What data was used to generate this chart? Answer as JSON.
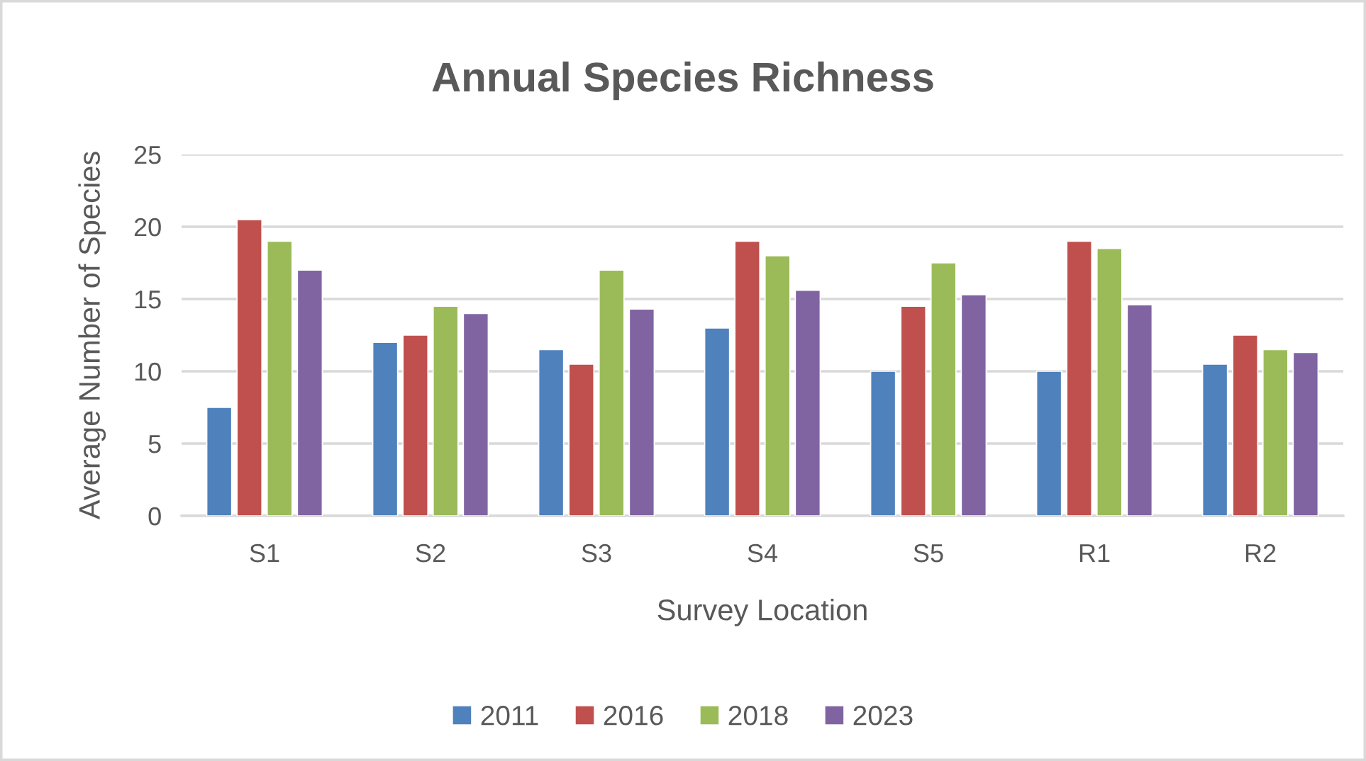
{
  "chart_data": {
    "type": "bar",
    "title": "Annual Species Richness",
    "xlabel": "Survey Location",
    "ylabel": "Average Number of Species",
    "categories": [
      "S1",
      "S2",
      "S3",
      "S4",
      "S5",
      "R1",
      "R2"
    ],
    "series": [
      {
        "name": "2011",
        "color": "#4f81bd",
        "values": [
          7.5,
          12,
          11.5,
          13,
          10,
          10,
          10.5
        ]
      },
      {
        "name": "2016",
        "color": "#c0504d",
        "values": [
          20.5,
          12.5,
          10.5,
          19,
          14.5,
          19,
          12.5
        ]
      },
      {
        "name": "2018",
        "color": "#9bbb59",
        "values": [
          19,
          14.5,
          17,
          18,
          17.5,
          18.5,
          11.5
        ]
      },
      {
        "name": "2023",
        "color": "#8064a2",
        "values": [
          17,
          14,
          14.3,
          15.6,
          15.3,
          14.6,
          11.3
        ]
      }
    ],
    "ylim": [
      0,
      25
    ],
    "yticks": [
      0,
      5,
      10,
      15,
      20,
      25
    ],
    "grid": "y",
    "legend": "bottom"
  }
}
